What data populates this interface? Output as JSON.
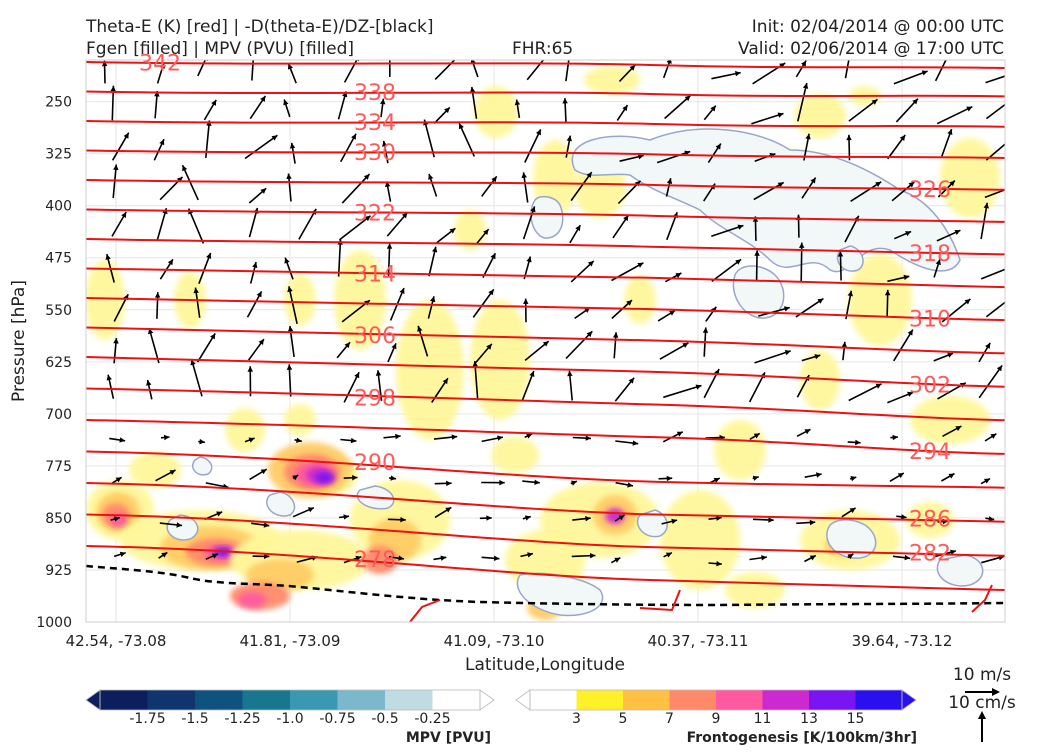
{
  "header": {
    "title_line1": "Theta-E (K) [red] | -D(theta-E)/DZ-[black]",
    "title_line2": "Fgen [filled] | MPV (PVU) [filled]",
    "fhr": "FHR:65",
    "init": "Init: 02/04/2014 @ 00:00 UTC",
    "valid": "Valid: 02/06/2014 @ 17:00 UTC"
  },
  "chart_data": {
    "type": "cross-section",
    "xlabel": "Latitude,Longitude",
    "ylabel": "Pressure [hPa]",
    "x_ticks": [
      "42.54, -73.08",
      "41.81, -73.09",
      "41.09, -73.10",
      "40.37, -73.11",
      "39.64, -73.12"
    ],
    "y_ticks": [
      250,
      325,
      400,
      475,
      550,
      625,
      700,
      775,
      850,
      925,
      1000
    ],
    "ylim": [
      1000,
      190
    ],
    "theta_e_contours": [
      {
        "value": "342",
        "label_side": "left"
      },
      {
        "value": "338",
        "label_side": "mid"
      },
      {
        "value": "334",
        "label_side": "mid"
      },
      {
        "value": "330",
        "label_side": "mid"
      },
      {
        "value": "326",
        "label_side": "right"
      },
      {
        "value": "322",
        "label_side": "mid"
      },
      {
        "value": "318",
        "label_side": "right"
      },
      {
        "value": "314",
        "label_side": "mid"
      },
      {
        "value": "310",
        "label_side": "right"
      },
      {
        "value": "306",
        "label_side": "mid"
      },
      {
        "value": "302",
        "label_side": "right"
      },
      {
        "value": "298",
        "label_side": "mid"
      },
      {
        "value": "294",
        "label_side": "right"
      },
      {
        "value": "290",
        "label_side": "mid"
      },
      {
        "value": "286",
        "label_side": "right"
      },
      {
        "value": "282",
        "label_side": "right"
      },
      {
        "value": "278",
        "label_side": "mid"
      }
    ],
    "colors": {
      "theta_e": "#ee1111",
      "theta_e_label": "#ff5a5a",
      "dthetae_dz": "#000000",
      "mpv_outline": "#9aa6c8",
      "mpv_fill": "#f2f7f8"
    },
    "mpv_colorbar": {
      "label": "MPV [PVU]",
      "ticks": [
        "-1.75",
        "-1.5",
        "-1.25",
        "-1.0",
        "-0.75",
        "-0.5",
        "-0.25"
      ],
      "colors": [
        "#0c1f5c",
        "#10356e",
        "#0f5280",
        "#18778f",
        "#3b98b3",
        "#7cb8cc",
        "#bfdce3",
        "#ffffff"
      ]
    },
    "fgen_colorbar": {
      "label": "Frontogenesis [K/100km/3hr]",
      "ticks": [
        "3",
        "5",
        "7",
        "9",
        "11",
        "13",
        "15"
      ],
      "colors": [
        "#ffffff",
        "#fff02a",
        "#ffc044",
        "#ff8a6a",
        "#ff5aa0",
        "#cc2ad0",
        "#7a14f2",
        "#2a10ee"
      ]
    },
    "vector_key": {
      "horizontal": "10 m/s",
      "vertical": "10 cm/s"
    }
  }
}
